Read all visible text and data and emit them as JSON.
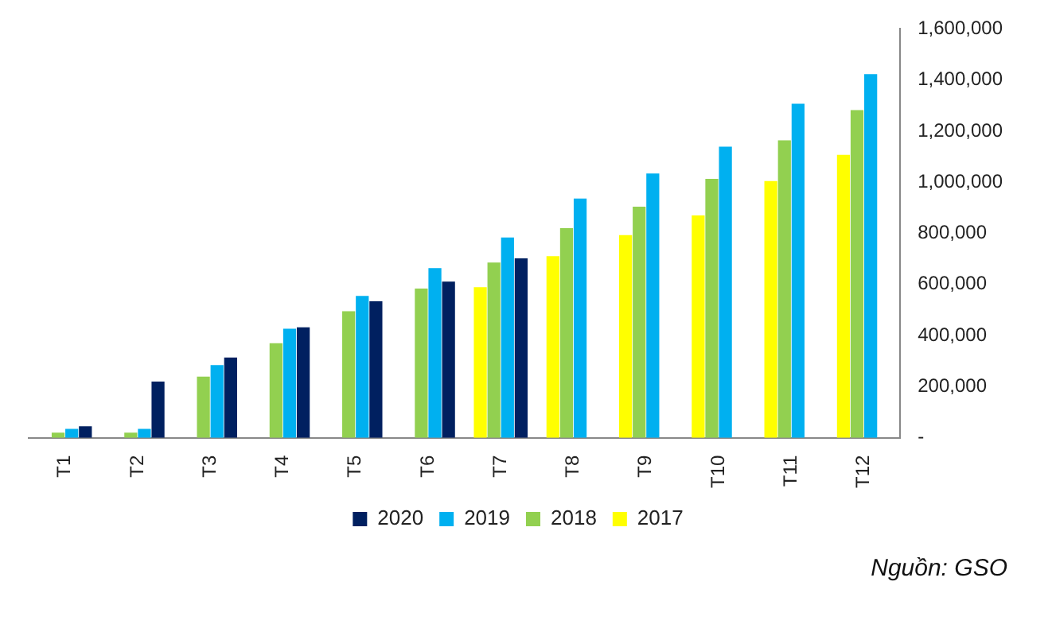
{
  "chart_data": {
    "type": "bar",
    "categories": [
      "T1",
      "T2",
      "T3",
      "T4",
      "T5",
      "T6",
      "T7",
      "T8",
      "T9",
      "T10",
      "T11",
      "T12"
    ],
    "series": [
      {
        "name": "2017",
        "color": "#ffff00",
        "values": [
          null,
          null,
          null,
          null,
          null,
          null,
          589000,
          711000,
          793000,
          870000,
          1005000,
          1107000
        ]
      },
      {
        "name": "2018",
        "color": "#92d050",
        "values": [
          20000,
          20000,
          239000,
          370000,
          495000,
          584000,
          686000,
          820000,
          904000,
          1013000,
          1164000,
          1282000
        ]
      },
      {
        "name": "2019",
        "color": "#00b0f0",
        "values": [
          35000,
          35000,
          284000,
          427000,
          555000,
          664000,
          784000,
          936000,
          1034000,
          1139000,
          1307000,
          1423000
        ]
      },
      {
        "name": "2020",
        "color": "#002060",
        "values": [
          45000,
          220000,
          314000,
          432000,
          534000,
          611000,
          702000,
          null,
          null,
          null,
          null,
          null
        ]
      }
    ],
    "ylim": [
      0,
      1600000
    ],
    "yticks": [
      {
        "value": 0,
        "label": "-"
      },
      {
        "value": 200000,
        "label": "200,000"
      },
      {
        "value": 400000,
        "label": "400,000"
      },
      {
        "value": 600000,
        "label": "600,000"
      },
      {
        "value": 800000,
        "label": "800,000"
      },
      {
        "value": 1000000,
        "label": "1,000,000"
      },
      {
        "value": 1200000,
        "label": "1,200,000"
      },
      {
        "value": 1400000,
        "label": "1,400,000"
      },
      {
        "value": 1600000,
        "label": "1,600,000"
      }
    ],
    "grid": false,
    "legend": "bottom",
    "annotations": [
      "Nguồn: GSO"
    ]
  }
}
